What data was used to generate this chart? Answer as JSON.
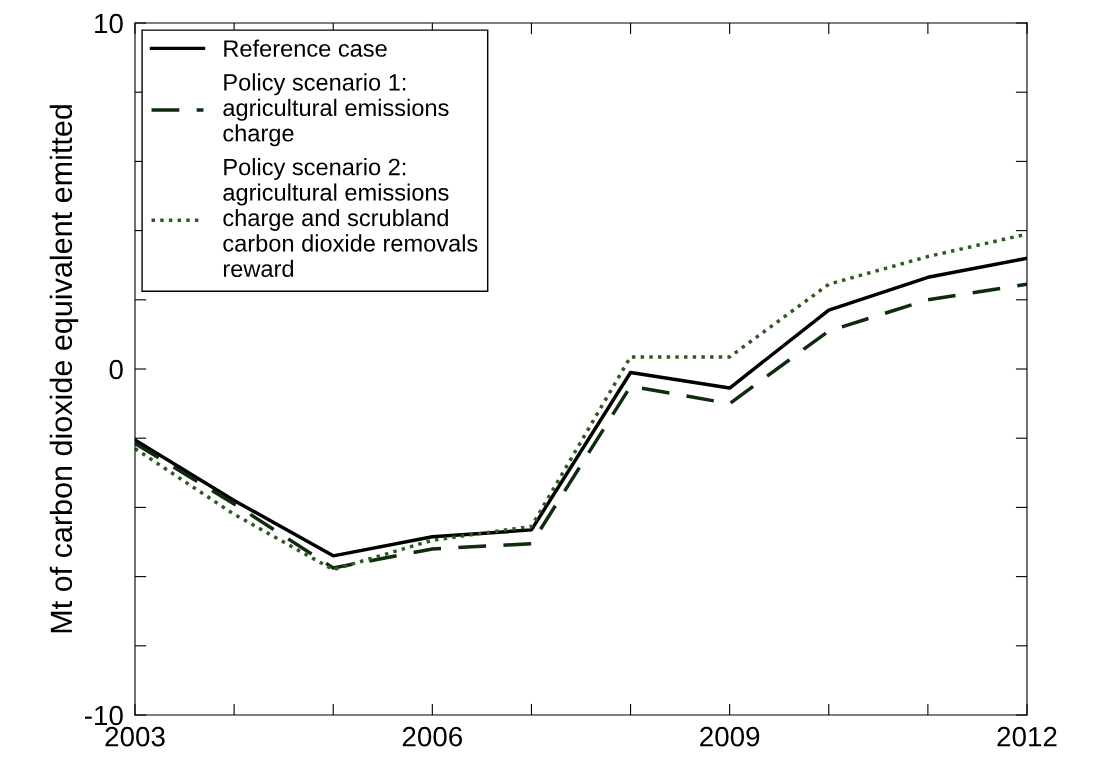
{
  "chart_data": {
    "type": "line",
    "ylabel": "Mt of carbon dioxide equivalent emitted",
    "x": [
      2003,
      2004,
      2005,
      2006,
      2007,
      2008,
      2009,
      2010,
      2011,
      2012
    ],
    "xlim": [
      2003,
      2012
    ],
    "xticks": [
      2003,
      {
        "value": 2004,
        "label": null
      },
      {
        "value": 2005,
        "label": null
      },
      2006,
      {
        "value": 2007,
        "label": null
      },
      {
        "value": 2008,
        "label": null
      },
      2009,
      {
        "value": 2010,
        "label": null
      },
      {
        "value": 2011,
        "label": null
      },
      2012
    ],
    "ylim": [
      -10,
      10
    ],
    "yticks": [
      -10,
      {
        "value": -8,
        "label": null
      },
      {
        "value": -6,
        "label": null
      },
      {
        "value": -4,
        "label": null
      },
      {
        "value": -2,
        "label": null
      },
      0,
      {
        "value": 2,
        "label": null
      },
      {
        "value": 4,
        "label": null
      },
      {
        "value": 6,
        "label": null
      },
      {
        "value": 8,
        "label": null
      },
      10
    ],
    "series": [
      {
        "name": "Reference case",
        "color": "#000000",
        "line_style": "solid",
        "values": [
          -2.05,
          -3.8,
          -5.4,
          -4.85,
          -4.65,
          -0.1,
          -0.55,
          1.7,
          2.65,
          3.2
        ]
      },
      {
        "name": "Policy scenario 1:\nagricultural emissions\ncharge",
        "color": "#0d2b0d",
        "line_style": "dashed",
        "values": [
          -2.15,
          -3.9,
          -5.75,
          -5.2,
          -5.05,
          -0.5,
          -1.0,
          1.1,
          2.0,
          2.45
        ]
      },
      {
        "name": "Policy scenario 2:\nagricultural emissions\ncharge and scrubland\ncarbon dioxide removals\nreward",
        "color": "#2d5a1e",
        "line_style": "dotted",
        "values": [
          -2.3,
          -4.2,
          -5.8,
          -4.95,
          -4.55,
          0.35,
          0.35,
          2.45,
          3.25,
          3.9
        ]
      }
    ],
    "grid": false,
    "legend": "top left",
    "marker": "none"
  }
}
